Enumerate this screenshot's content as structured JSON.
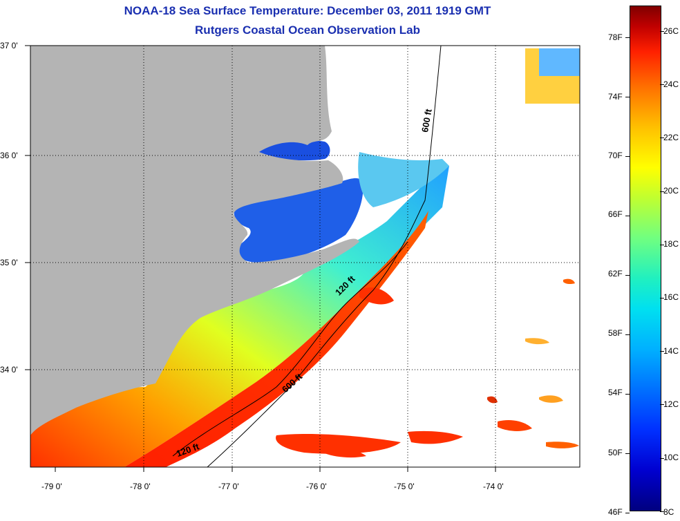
{
  "title": {
    "line1": "NOAA-18 Sea Surface Temperature:  December 03, 2011 1919 GMT",
    "line2": "Rutgers Coastal Ocean Observation Lab"
  },
  "map": {
    "lat_labels": [
      "37 0'",
      "36 0'",
      "35 0'",
      "34 0'"
    ],
    "lon_labels": [
      "-79 0'",
      "-78 0'",
      "-77 0'",
      "-76 0'",
      "-75 0'",
      "-74 0'"
    ],
    "contour_labels": [
      "600 ft",
      "120 ft",
      "600 ft",
      "120 ft"
    ],
    "colors": {
      "land": "#b4b4b4",
      "cloud": "#ffffff"
    }
  },
  "colorbar": {
    "fahrenheit_labels": [
      "78F",
      "74F",
      "70F",
      "66F",
      "62F",
      "58F",
      "54F",
      "50F",
      "46F"
    ],
    "celsius_labels": [
      "26C",
      "24C",
      "22C",
      "20C",
      "18C",
      "16C",
      "14C",
      "12C",
      "10C",
      "8C"
    ]
  }
}
